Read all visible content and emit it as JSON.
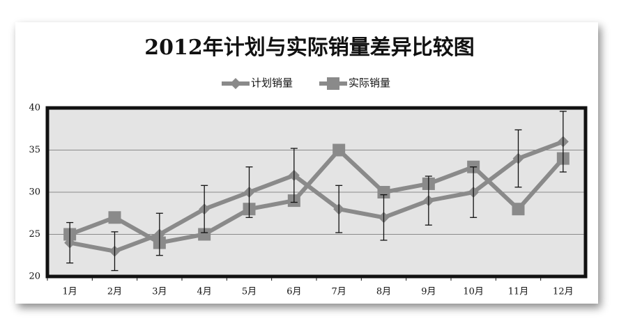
{
  "chart_data": {
    "type": "line",
    "title": "2012年计划与实际销量差异比较图",
    "categories": [
      "1月",
      "2月",
      "3月",
      "4月",
      "5月",
      "6月",
      "7月",
      "8月",
      "9月",
      "10月",
      "11月",
      "12月"
    ],
    "series": [
      {
        "name": "计划销量",
        "color": "#8a8a8a",
        "marker": "diamond",
        "values": [
          24,
          23,
          25,
          28,
          30,
          32,
          28,
          27,
          29,
          30,
          34,
          36
        ],
        "errors": [
          2.4,
          2.3,
          2.5,
          2.8,
          3,
          3.2,
          2.8,
          2.7,
          2.9,
          3,
          3.4,
          3.6
        ]
      },
      {
        "name": "实际销量",
        "color": "#8a8a8a",
        "marker": "square",
        "values": [
          25,
          27,
          24,
          25,
          28,
          29,
          35,
          30,
          31,
          33,
          28,
          34
        ]
      }
    ],
    "ylim": [
      20,
      40
    ],
    "yticks": [
      20,
      25,
      30,
      35,
      40
    ],
    "grid": true,
    "legend": "top"
  }
}
